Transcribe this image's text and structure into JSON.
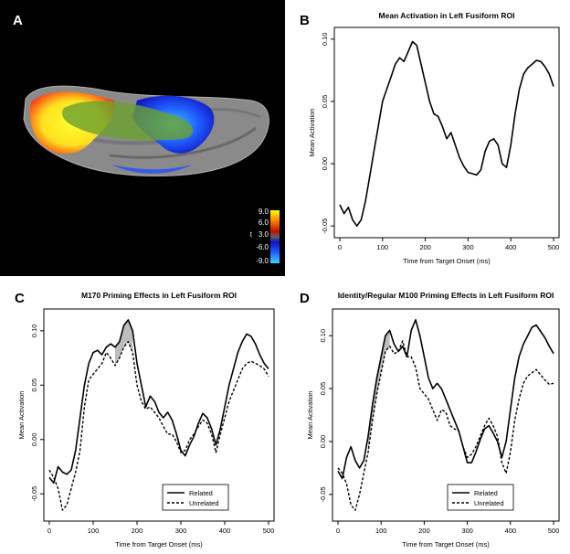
{
  "panels": {
    "a": {
      "letter": "A",
      "colorbar": {
        "ticks": [
          "9.0",
          "6.0",
          "3.0",
          "-6.0",
          "-9.0"
        ],
        "stat_label": "t",
        "colors": [
          "#ffff00",
          "#ff2000",
          "#606060",
          "#1020ff",
          "#40d0ff"
        ]
      }
    },
    "b": {
      "letter": "B"
    },
    "c": {
      "letter": "C"
    },
    "d": {
      "letter": "D"
    }
  },
  "chart_data": [
    {
      "panel": "B",
      "type": "line",
      "title": "Mean Activation in Left Fusiform ROI",
      "xlabel": "Time from Target Onset (ms)",
      "ylabel": "Mean Activation",
      "xlim": [
        0,
        500
      ],
      "ylim": [
        -0.055,
        0.105
      ],
      "xticks": [
        0,
        100,
        200,
        300,
        400,
        500
      ],
      "yticks": [
        -0.05,
        0.0,
        0.05,
        0.1
      ],
      "ytick_labels": [
        "-0.05",
        "0.00",
        "0.05",
        "0.10"
      ],
      "legend": null,
      "series": [
        {
          "name": "Mean",
          "style": "solid",
          "x": [
            0,
            10,
            20,
            30,
            40,
            50,
            60,
            70,
            80,
            90,
            100,
            110,
            120,
            130,
            140,
            150,
            160,
            170,
            180,
            190,
            200,
            210,
            220,
            230,
            240,
            250,
            260,
            270,
            280,
            290,
            300,
            310,
            320,
            330,
            340,
            350,
            360,
            370,
            380,
            390,
            400,
            410,
            420,
            430,
            440,
            450,
            460,
            470,
            480,
            490,
            500
          ],
          "y": [
            -0.033,
            -0.04,
            -0.035,
            -0.045,
            -0.05,
            -0.045,
            -0.03,
            -0.01,
            0.01,
            0.03,
            0.05,
            0.06,
            0.07,
            0.08,
            0.085,
            0.082,
            0.09,
            0.098,
            0.095,
            0.08,
            0.065,
            0.05,
            0.04,
            0.038,
            0.03,
            0.02,
            0.025,
            0.015,
            0.005,
            -0.002,
            -0.007,
            -0.008,
            -0.009,
            -0.005,
            0.01,
            0.018,
            0.02,
            0.015,
            0.0,
            -0.003,
            0.015,
            0.04,
            0.06,
            0.072,
            0.077,
            0.08,
            0.083,
            0.082,
            0.078,
            0.072,
            0.062
          ]
        }
      ]
    },
    {
      "panel": "C",
      "type": "line",
      "title": "M170 Priming Effects in Left Fusiform ROI",
      "xlabel": "Time from Target Onset (ms)",
      "ylabel": "Mean Activation",
      "xlim": [
        0,
        500
      ],
      "ylim": [
        -0.07,
        0.115
      ],
      "xticks": [
        0,
        100,
        200,
        300,
        400,
        500
      ],
      "yticks": [
        -0.05,
        0.0,
        0.05,
        0.1
      ],
      "ytick_labels": [
        "-0.05",
        "0.00",
        "0.05",
        "0.10"
      ],
      "legend": {
        "entries": [
          "Related",
          "Unrelated"
        ],
        "placement": "bottom-right"
      },
      "shaded_interval": [
        150,
        190
      ],
      "series": [
        {
          "name": "Related",
          "style": "solid",
          "x": [
            0,
            10,
            20,
            30,
            40,
            50,
            60,
            70,
            80,
            90,
            100,
            110,
            120,
            130,
            140,
            150,
            160,
            170,
            180,
            190,
            200,
            210,
            220,
            230,
            240,
            250,
            260,
            270,
            280,
            290,
            300,
            310,
            320,
            330,
            340,
            350,
            360,
            370,
            380,
            390,
            400,
            410,
            420,
            430,
            440,
            450,
            460,
            470,
            480,
            490,
            500
          ],
          "y": [
            -0.035,
            -0.04,
            -0.025,
            -0.03,
            -0.032,
            -0.028,
            -0.01,
            0.02,
            0.05,
            0.07,
            0.08,
            0.082,
            0.078,
            0.085,
            0.088,
            0.085,
            0.09,
            0.105,
            0.11,
            0.1,
            0.07,
            0.05,
            0.03,
            0.04,
            0.035,
            0.025,
            0.02,
            0.025,
            0.018,
            0.005,
            -0.01,
            -0.015,
            -0.005,
            0.003,
            0.015,
            0.024,
            0.02,
            0.01,
            -0.005,
            0.01,
            0.03,
            0.05,
            0.065,
            0.08,
            0.09,
            0.097,
            0.095,
            0.088,
            0.078,
            0.07,
            0.065
          ]
        },
        {
          "name": "Unrelated",
          "style": "dashed",
          "x": [
            0,
            10,
            20,
            30,
            40,
            50,
            60,
            70,
            80,
            90,
            100,
            110,
            120,
            130,
            140,
            150,
            160,
            170,
            180,
            190,
            200,
            210,
            220,
            230,
            240,
            250,
            260,
            270,
            280,
            290,
            300,
            310,
            320,
            330,
            340,
            350,
            360,
            370,
            380,
            390,
            400,
            410,
            420,
            430,
            440,
            450,
            460,
            470,
            480,
            490,
            500
          ],
          "y": [
            -0.028,
            -0.035,
            -0.045,
            -0.065,
            -0.06,
            -0.045,
            -0.03,
            -0.01,
            0.03,
            0.055,
            0.06,
            0.065,
            0.07,
            0.08,
            0.075,
            0.068,
            0.075,
            0.085,
            0.09,
            0.08,
            0.05,
            0.035,
            0.028,
            0.03,
            0.025,
            0.02,
            0.012,
            0.005,
            0.005,
            -0.002,
            -0.012,
            -0.01,
            0.0,
            0.005,
            0.012,
            0.018,
            0.015,
            0.005,
            -0.012,
            0.005,
            0.02,
            0.035,
            0.045,
            0.055,
            0.065,
            0.07,
            0.072,
            0.07,
            0.068,
            0.065,
            0.058
          ]
        }
      ]
    },
    {
      "panel": "D",
      "type": "line",
      "title": "Identity/Regular M100 Priming Effects in Left Fusiform ROI",
      "xlabel": "Time from Target Onset (ms)",
      "ylabel": "Mean Activation",
      "xlim": [
        0,
        500
      ],
      "ylim": [
        -0.07,
        0.12
      ],
      "xticks": [
        0,
        100,
        200,
        300,
        400,
        500
      ],
      "yticks": [
        -0.05,
        0.0,
        0.05,
        0.1
      ],
      "ytick_labels": [
        "-0.05",
        "0.00",
        "0.05",
        "0.10"
      ],
      "legend": {
        "entries": [
          "Related",
          "Unrelated"
        ],
        "placement": "bottom-right"
      },
      "shaded_interval": [
        70,
        120
      ],
      "series": [
        {
          "name": "Related",
          "style": "solid",
          "x": [
            0,
            10,
            20,
            30,
            40,
            50,
            60,
            70,
            80,
            90,
            100,
            110,
            120,
            130,
            140,
            150,
            160,
            170,
            180,
            190,
            200,
            210,
            220,
            230,
            240,
            250,
            260,
            270,
            280,
            290,
            300,
            310,
            320,
            330,
            340,
            350,
            360,
            370,
            380,
            390,
            400,
            410,
            420,
            430,
            440,
            450,
            460,
            470,
            480,
            490,
            500
          ],
          "y": [
            -0.028,
            -0.035,
            -0.015,
            -0.005,
            -0.018,
            -0.025,
            -0.018,
            0.005,
            0.035,
            0.06,
            0.08,
            0.1,
            0.105,
            0.092,
            0.085,
            0.09,
            0.08,
            0.105,
            0.115,
            0.1,
            0.08,
            0.06,
            0.05,
            0.055,
            0.05,
            0.04,
            0.03,
            0.02,
            0.01,
            -0.005,
            -0.02,
            -0.02,
            -0.01,
            0.002,
            0.012,
            0.015,
            0.008,
            0.0,
            -0.015,
            0.0,
            0.03,
            0.06,
            0.08,
            0.092,
            0.1,
            0.108,
            0.11,
            0.104,
            0.098,
            0.09,
            0.083
          ]
        },
        {
          "name": "Unrelated",
          "style": "dashed",
          "x": [
            0,
            10,
            20,
            30,
            40,
            50,
            60,
            70,
            80,
            90,
            100,
            110,
            120,
            130,
            140,
            150,
            160,
            170,
            180,
            190,
            200,
            210,
            220,
            230,
            240,
            250,
            260,
            270,
            280,
            290,
            300,
            310,
            320,
            330,
            340,
            350,
            360,
            370,
            380,
            390,
            400,
            410,
            420,
            430,
            440,
            450,
            460,
            470,
            480,
            490,
            500
          ],
          "y": [
            -0.025,
            -0.03,
            -0.04,
            -0.06,
            -0.065,
            -0.05,
            -0.03,
            -0.01,
            0.02,
            0.045,
            0.065,
            0.085,
            0.09,
            0.083,
            0.085,
            0.095,
            0.08,
            0.08,
            0.07,
            0.05,
            0.045,
            0.04,
            0.03,
            0.02,
            0.03,
            0.028,
            0.015,
            0.012,
            0.01,
            -0.005,
            -0.015,
            -0.012,
            -0.005,
            0.005,
            0.015,
            0.022,
            0.015,
            0.005,
            -0.02,
            -0.03,
            -0.01,
            0.02,
            0.04,
            0.055,
            0.062,
            0.065,
            0.068,
            0.063,
            0.058,
            0.054,
            0.055
          ]
        }
      ]
    }
  ]
}
